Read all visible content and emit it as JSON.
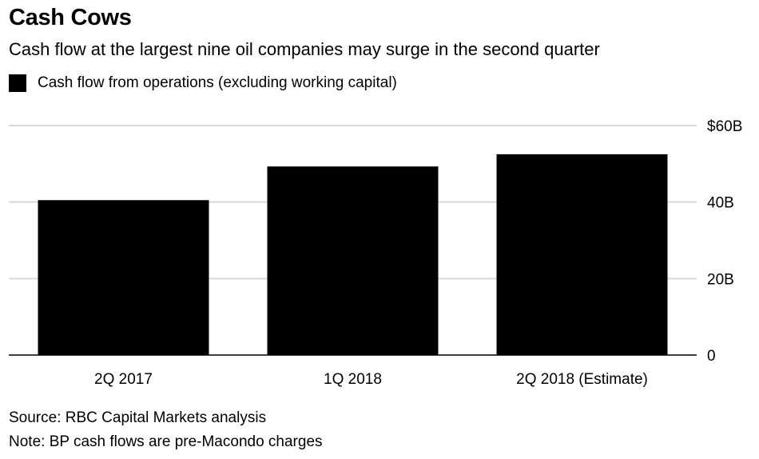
{
  "header": {
    "title": "Cash Cows",
    "subtitle": "Cash flow at the largest nine oil companies may surge in the second quarter"
  },
  "footer": {
    "source": "Source: RBC Capital Markets analysis",
    "note": "Note: BP cash flows are pre-Macondo charges"
  },
  "chart_data": {
    "type": "bar",
    "title": "Cash Cows",
    "subtitle": "Cash flow at the largest nine oil companies may surge in the second quarter",
    "categories": [
      "2Q 2017",
      "1Q 2018",
      "2Q 2018 (Estimate)"
    ],
    "series": [
      {
        "name": "Cash flow from operations (excluding working capital)",
        "values": [
          40.5,
          49.3,
          52.5
        ],
        "color": "#000000"
      }
    ],
    "ylim": [
      0,
      60
    ],
    "yticks": [
      0,
      20,
      40,
      60
    ],
    "ytick_labels": [
      "0",
      "20B",
      "40B",
      "$60B"
    ],
    "y_axis_side": "right",
    "grid": true,
    "legend_position": "top-left"
  }
}
